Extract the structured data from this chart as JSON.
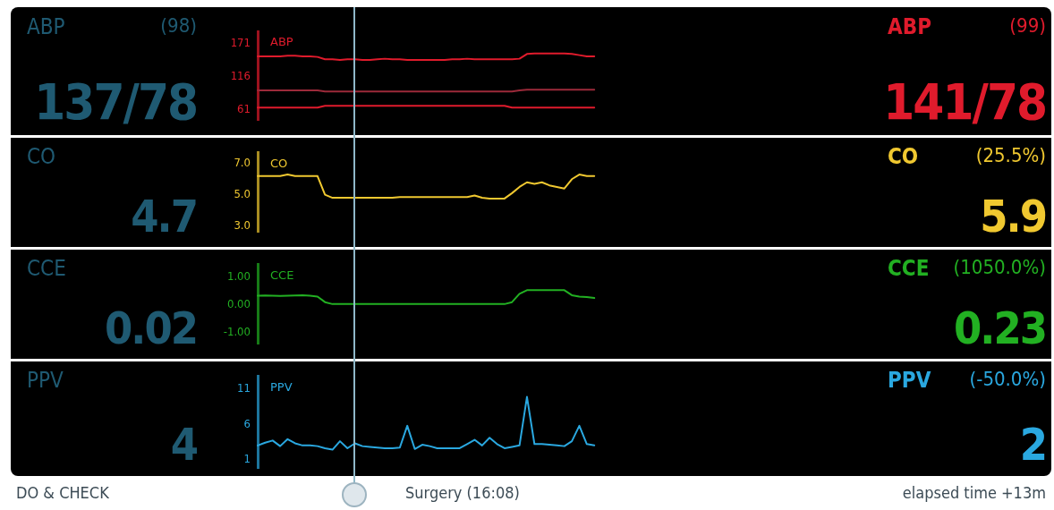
{
  "chart_data": [
    {
      "type": "line",
      "title": "ABP",
      "categories": [
        null,
        null,
        null,
        null,
        null,
        null,
        null,
        null,
        null,
        null,
        null,
        null,
        null,
        null,
        null,
        null,
        null,
        null,
        null,
        null,
        null,
        null,
        null,
        null,
        null,
        null,
        null,
        null,
        null,
        null,
        null,
        null,
        null,
        null,
        null,
        null,
        null,
        null,
        null,
        null,
        null,
        null,
        null,
        null,
        null,
        null,
        null,
        null,
        null,
        null,
        null,
        null,
        null,
        null,
        null,
        null,
        null,
        null,
        null,
        null,
        null,
        null,
        null,
        null,
        null,
        null,
        null,
        null,
        null,
        null,
        null,
        null,
        null,
        null,
        null,
        null
      ],
      "series": [
        {
          "color": "#e01b2c",
          "values": [
            150,
            150,
            150,
            150,
            151,
            151,
            150,
            150,
            149,
            145,
            145,
            144,
            145,
            145,
            144,
            144,
            145,
            146,
            145,
            145,
            144,
            144,
            144,
            144,
            144,
            144,
            145,
            145,
            146,
            145,
            145,
            145,
            145,
            145,
            145,
            146,
            154,
            155,
            155,
            155,
            155,
            155,
            154,
            152,
            150,
            150,
            null,
            null,
            null,
            null,
            null,
            null,
            null,
            null,
            null,
            null,
            null,
            null,
            null,
            null,
            null,
            null,
            null,
            null,
            null,
            null,
            null,
            null,
            null,
            null,
            null,
            null,
            null,
            null,
            null,
            null
          ]
        },
        {
          "color": "#9c2a3a",
          "values": [
            93,
            93,
            93,
            93,
            93,
            93,
            93,
            93,
            93,
            91,
            91,
            91,
            91,
            91,
            91,
            91,
            91,
            91,
            91,
            91,
            91,
            91,
            91,
            91,
            91,
            91,
            91,
            91,
            91,
            91,
            91,
            91,
            91,
            91,
            91,
            93,
            94,
            94,
            94,
            94,
            94,
            94,
            94,
            94,
            94,
            94,
            null,
            null,
            null,
            null,
            null,
            null,
            null,
            null,
            null,
            null,
            null,
            null,
            null,
            null,
            null,
            null,
            null,
            null,
            null,
            null,
            null,
            null,
            null,
            null,
            null,
            null,
            null,
            null,
            null,
            null
          ]
        },
        {
          "color": "#e01b2c",
          "values": [
            64,
            64,
            64,
            64,
            64,
            64,
            64,
            64,
            64,
            67,
            67,
            67,
            67,
            67,
            67,
            67,
            67,
            67,
            67,
            67,
            67,
            67,
            67,
            67,
            67,
            67,
            67,
            67,
            67,
            67,
            67,
            67,
            67,
            67,
            64,
            64,
            64,
            64,
            64,
            64,
            64,
            64,
            64,
            64,
            64,
            64,
            null,
            null,
            null,
            null,
            null,
            null,
            null,
            null,
            null,
            null,
            null,
            null,
            null,
            null,
            null,
            null,
            null,
            null,
            null,
            null,
            null,
            null,
            null,
            null,
            null,
            null,
            null,
            null,
            null,
            null
          ]
        }
      ],
      "ylim": [
        43,
        192
      ],
      "yticks": [
        61,
        116,
        171
      ],
      "annotations": [
        "ABP",
        "(98)",
        "137/78",
        "ABP",
        "(99)",
        "141/78"
      ]
    },
    {
      "type": "line",
      "title": "CO",
      "categories": [
        null,
        null,
        null,
        null,
        null,
        null,
        null,
        null,
        null,
        null,
        null,
        null,
        null,
        null,
        null,
        null,
        null,
        null,
        null,
        null,
        null,
        null,
        null,
        null,
        null,
        null,
        null,
        null,
        null,
        null,
        null,
        null,
        null,
        null,
        null,
        null,
        null,
        null,
        null,
        null,
        null,
        null,
        null,
        null,
        null,
        null,
        null,
        null,
        null,
        null,
        null,
        null,
        null,
        null,
        null,
        null,
        null,
        null,
        null,
        null,
        null,
        null,
        null,
        null,
        null,
        null,
        null,
        null,
        null,
        null,
        null,
        null,
        null,
        null,
        null,
        null
      ],
      "series": [
        {
          "color": "#f0c830",
          "values": [
            6.2,
            6.2,
            6.2,
            6.2,
            6.3,
            6.2,
            6.2,
            6.2,
            6.2,
            5.0,
            4.8,
            4.8,
            4.8,
            4.8,
            4.8,
            4.8,
            4.8,
            4.8,
            4.8,
            4.85,
            4.85,
            4.85,
            4.85,
            4.85,
            4.85,
            4.85,
            4.85,
            4.85,
            4.85,
            4.95,
            4.8,
            4.75,
            4.75,
            4.75,
            5.1,
            5.5,
            5.8,
            5.7,
            5.8,
            5.6,
            5.5,
            5.4,
            6.0,
            6.3,
            6.2,
            6.2,
            null,
            null,
            null,
            null,
            null,
            null,
            null,
            null,
            null,
            null,
            null,
            null,
            null,
            null,
            null,
            null,
            null,
            null,
            null,
            null,
            null,
            null,
            null,
            null,
            null,
            null,
            null,
            null,
            null,
            null
          ]
        }
      ],
      "ylim": [
        2.6,
        7.7
      ],
      "yticks": [
        {
          "value": 3,
          "label": "3.0"
        },
        {
          "value": 5,
          "label": "5.0"
        },
        {
          "value": 7,
          "label": "7.0"
        }
      ],
      "annotations": [
        "CO",
        "4.7",
        "CO",
        "(25.5%)",
        "5.9"
      ]
    },
    {
      "type": "line",
      "title": "CCE",
      "categories": [
        null,
        null,
        null,
        null,
        null,
        null,
        null,
        null,
        null,
        null,
        null,
        null,
        null,
        null,
        null,
        null,
        null,
        null,
        null,
        null,
        null,
        null,
        null,
        null,
        null,
        null,
        null,
        null,
        null,
        null,
        null,
        null,
        null,
        null,
        null,
        null,
        null,
        null,
        null,
        null,
        null,
        null,
        null,
        null,
        null,
        null,
        null,
        null,
        null,
        null,
        null,
        null,
        null,
        null,
        null,
        null,
        null,
        null,
        null,
        null,
        null,
        null,
        null,
        null,
        null,
        null,
        null,
        null,
        null,
        null,
        null,
        null,
        null,
        null,
        null,
        null
      ],
      "series": [
        {
          "color": "#22b022",
          "values": [
            0.33,
            0.34,
            0.33,
            0.32,
            0.33,
            0.34,
            0.35,
            0.33,
            0.3,
            0.1,
            0.03,
            0.03,
            0.03,
            0.03,
            0.03,
            0.03,
            0.03,
            0.03,
            0.03,
            0.03,
            0.03,
            0.03,
            0.03,
            0.03,
            0.03,
            0.03,
            0.03,
            0.03,
            0.03,
            0.03,
            0.03,
            0.03,
            0.03,
            0.03,
            0.1,
            0.4,
            0.53,
            0.53,
            0.53,
            0.53,
            0.53,
            0.53,
            0.35,
            0.3,
            0.28,
            0.25,
            null,
            null,
            null,
            null,
            null,
            null,
            null,
            null,
            null,
            null,
            null,
            null,
            null,
            null,
            null,
            null,
            null,
            null,
            null,
            null,
            null,
            null,
            null,
            null,
            null,
            null,
            null,
            null,
            null,
            null
          ]
        }
      ],
      "ylim": [
        -1.4,
        1.45
      ],
      "yticks": [
        {
          "value": -1,
          "label": "-1.00"
        },
        {
          "value": 0,
          "label": "0.00"
        },
        {
          "value": 1,
          "label": "1.00"
        }
      ],
      "annotations": [
        "CCE",
        "0.02",
        "CCE",
        "(1050.0%)",
        "0.23"
      ]
    },
    {
      "type": "line",
      "title": "PPV",
      "categories": [
        null,
        null,
        null,
        null,
        null,
        null,
        null,
        null,
        null,
        null,
        null,
        null,
        null,
        null,
        null,
        null,
        null,
        null,
        null,
        null,
        null,
        null,
        null,
        null,
        null,
        null,
        null,
        null,
        null,
        null,
        null,
        null,
        null,
        null,
        null,
        null,
        null,
        null,
        null,
        null,
        null,
        null,
        null,
        null,
        null,
        null,
        null,
        null,
        null,
        null,
        null,
        null,
        null,
        null,
        null,
        null,
        null,
        null,
        null,
        null,
        null,
        null,
        null,
        null,
        null,
        null,
        null,
        null,
        null,
        null,
        null,
        null,
        null,
        null,
        null,
        null
      ],
      "series": [
        {
          "color": "#2aa8e0",
          "values": [
            3.0,
            3.4,
            3.7,
            2.9,
            3.9,
            3.3,
            3.0,
            3.0,
            2.9,
            2.6,
            2.4,
            3.6,
            2.6,
            3.3,
            2.9,
            2.8,
            2.7,
            2.6,
            2.6,
            2.7,
            5.8,
            2.5,
            3.1,
            2.9,
            2.6,
            2.6,
            2.6,
            2.6,
            3.2,
            3.8,
            3.0,
            4.1,
            3.2,
            2.6,
            2.8,
            3.0,
            9.9,
            3.2,
            3.2,
            3.1,
            3.0,
            2.9,
            3.6,
            5.8,
            3.2,
            3.0,
            null,
            null,
            null,
            null,
            null,
            null,
            null,
            null,
            null,
            null,
            null,
            null,
            null,
            null,
            null,
            null,
            null,
            null,
            null,
            null,
            null,
            null,
            null,
            null,
            null,
            null,
            null,
            null,
            null,
            null
          ]
        }
      ],
      "ylim": [
        -0.2,
        12.8
      ],
      "yticks": [
        1,
        6,
        11
      ],
      "annotations": [
        "PPV",
        "4",
        "PPV",
        "(-50.0%)",
        "2",
        "DO & CHECK",
        "Surgery (16:08)",
        "elapsed time +13m"
      ]
    }
  ]
}
